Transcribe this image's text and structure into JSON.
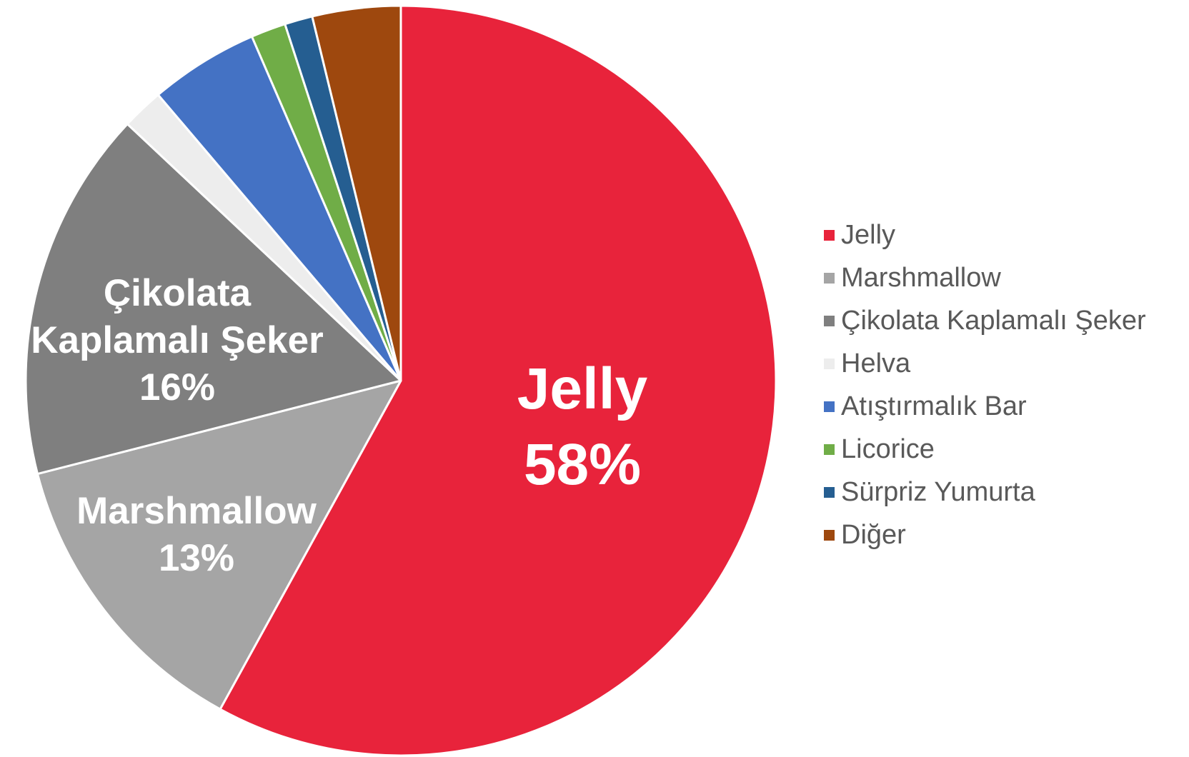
{
  "chart_data": {
    "type": "pie",
    "categories": [
      "Jelly",
      "Marshmallow",
      "Çikolata Kaplamalı Şeker",
      "Helva",
      "Atıştırmalık Bar",
      "Licorice",
      "Sürpriz Yumurta",
      "Diğer"
    ],
    "values": [
      58,
      13,
      16,
      1.8,
      4.7,
      1.5,
      1.2,
      3.8
    ],
    "colors": [
      "#E8233B",
      "#A5A5A5",
      "#7F7F7F",
      "#EDEDED",
      "#4472C4",
      "#70AD47",
      "#255E91",
      "#9E480E"
    ],
    "data_labels": [
      {
        "category": "Jelly",
        "percent": "58%"
      },
      {
        "category": "Marshmallow",
        "percent": "13%"
      },
      {
        "category": "Çikolata Kaplamalı Şeker",
        "percent": "16%"
      }
    ],
    "legend": "right",
    "label_color": "#FFFFFF",
    "legend_text_color": "#595959"
  }
}
